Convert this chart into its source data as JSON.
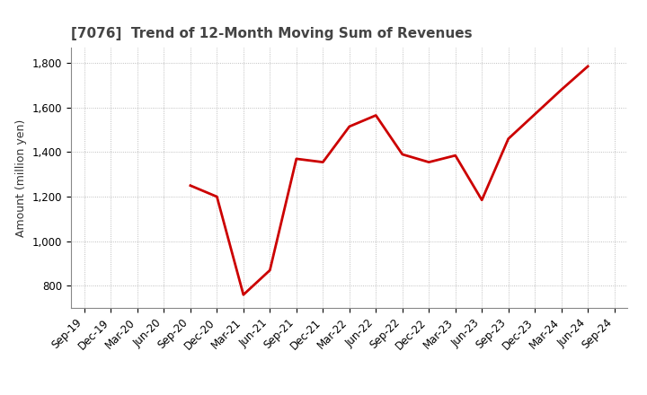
{
  "title": "[7076]  Trend of 12-Month Moving Sum of Revenues",
  "ylabel": "Amount (million yen)",
  "line_color": "#cc0000",
  "background_color": "#ffffff",
  "grid_color": "#999999",
  "ylim": [
    700,
    1870
  ],
  "yticks": [
    800,
    1000,
    1200,
    1400,
    1600,
    1800
  ],
  "ytick_labels": [
    "800",
    "1,000",
    "1,200",
    "1,400",
    "1,600",
    "1,800"
  ],
  "x_labels": [
    "Sep-19",
    "Dec-19",
    "Mar-20",
    "Jun-20",
    "Sep-20",
    "Dec-20",
    "Mar-21",
    "Jun-21",
    "Sep-21",
    "Dec-21",
    "Mar-22",
    "Jun-22",
    "Sep-22",
    "Dec-22",
    "Mar-23",
    "Jun-23",
    "Sep-23",
    "Dec-23",
    "Mar-24",
    "Jun-24",
    "Sep-24"
  ],
  "raw_data": [
    [
      "Sep-20",
      1250
    ],
    [
      "Dec-20",
      1200
    ],
    [
      "Mar-21",
      760
    ],
    [
      "Jun-21",
      870
    ],
    [
      "Sep-21",
      1370
    ],
    [
      "Dec-21",
      1355
    ],
    [
      "Mar-22",
      1515
    ],
    [
      "Jun-22",
      1565
    ],
    [
      "Sep-22",
      1390
    ],
    [
      "Dec-22",
      1355
    ],
    [
      "Mar-23",
      1385
    ],
    [
      "Jun-23",
      1185
    ],
    [
      "Sep-23",
      1460
    ],
    [
      "Dec-23",
      1570
    ],
    [
      "Mar-24",
      1680
    ],
    [
      "Jun-24",
      1785
    ]
  ],
  "line_width": 2.0,
  "title_color": "#444444",
  "title_fontsize": 11,
  "tick_fontsize": 8.5,
  "ylabel_fontsize": 9
}
